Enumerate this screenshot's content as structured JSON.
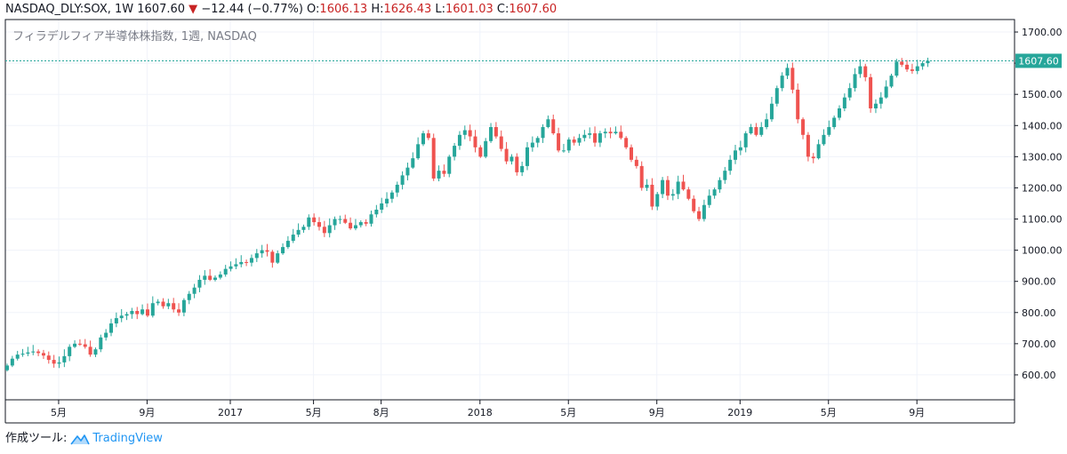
{
  "header": {
    "symbol": "NASDAQ_DLY:SOX, 1W",
    "last": "1607.60",
    "change_arrow": "▼",
    "change": "−12.44 (−0.77%)",
    "o_label": "O:",
    "o_value": "1606.13",
    "h_label": "H:",
    "h_value": "1626.43",
    "l_label": "L:",
    "l_value": "1601.03",
    "c_label": "C:",
    "c_value": "1607.60"
  },
  "footer": {
    "made_with": "作成ツール:",
    "brand": "TradingView"
  },
  "colors": {
    "up": "#26a69a",
    "down": "#ef5350",
    "price_line": "#26a69a",
    "axis": "#131722",
    "grid": "#f0f3fa"
  },
  "chart_data": {
    "type": "candlestick",
    "title": "フィラデルフィア半導体株指数, 1週, NASDAQ",
    "last_price_label": "1607.60",
    "last_price": 1607.6,
    "ylim": [
      520,
      1740
    ],
    "yticks": [
      600,
      700,
      800,
      900,
      1000,
      1100,
      1200,
      1300,
      1400,
      1500,
      1600,
      1700
    ],
    "ytick_labels": [
      "600.00",
      "700.00",
      "800.00",
      "900.00",
      "1000.00",
      "1100.00",
      "1200.00",
      "1300.00",
      "1400.00",
      "1500.00",
      "1600.00",
      "1700.00"
    ],
    "x_range": [
      0,
      163
    ],
    "xticks": [
      {
        "i": 7,
        "label": "5月"
      },
      {
        "i": 24,
        "label": "9月"
      },
      {
        "i": 40,
        "label": "2017"
      },
      {
        "i": 56,
        "label": "5月"
      },
      {
        "i": 69,
        "label": "8月"
      },
      {
        "i": 88,
        "label": "2018"
      },
      {
        "i": 105,
        "label": "5月"
      },
      {
        "i": 122,
        "label": "9月"
      },
      {
        "i": 138,
        "label": "2019"
      },
      {
        "i": 155,
        "label": "5月"
      },
      {
        "i": 172,
        "label": "9月"
      }
    ],
    "close": [
      630,
      652,
      665,
      668,
      672,
      675,
      670,
      662,
      648,
      636,
      640,
      660,
      690,
      700,
      698,
      690,
      665,
      682,
      720,
      735,
      765,
      782,
      790,
      795,
      805,
      795,
      810,
      790,
      830,
      835,
      820,
      830,
      810,
      800,
      840,
      860,
      880,
      905,
      918,
      905,
      912,
      922,
      940,
      948,
      955,
      962,
      960,
      975,
      990,
      1000,
      995,
      960,
      990,
      1010,
      1030,
      1050,
      1065,
      1075,
      1105,
      1090,
      1075,
      1055,
      1080,
      1100,
      1100,
      1088,
      1070,
      1080,
      1090,
      1085,
      1115,
      1130,
      1150,
      1165,
      1185,
      1210,
      1240,
      1265,
      1295,
      1340,
      1375,
      1360,
      1230,
      1255,
      1245,
      1300,
      1335,
      1370,
      1385,
      1365,
      1330,
      1300,
      1350,
      1395,
      1365,
      1325,
      1285,
      1300,
      1250,
      1270,
      1330,
      1345,
      1360,
      1395,
      1420,
      1375,
      1320,
      1320,
      1355,
      1345,
      1360,
      1370,
      1375,
      1345,
      1375,
      1380,
      1375,
      1380,
      1360,
      1330,
      1290,
      1270,
      1200,
      1210,
      1140,
      1180,
      1225,
      1175,
      1180,
      1220,
      1195,
      1165,
      1125,
      1100,
      1145,
      1175,
      1195,
      1225,
      1255,
      1290,
      1320,
      1330,
      1375,
      1395,
      1370,
      1395,
      1420,
      1470,
      1520,
      1560,
      1585,
      1515,
      1420,
      1370,
      1300,
      1295,
      1340,
      1370,
      1395,
      1425,
      1455,
      1490,
      1520,
      1565,
      1590,
      1555,
      1455,
      1470,
      1490,
      1525,
      1560,
      1605,
      1595,
      1580,
      1575,
      1590,
      1600,
      1607.6
    ]
  }
}
